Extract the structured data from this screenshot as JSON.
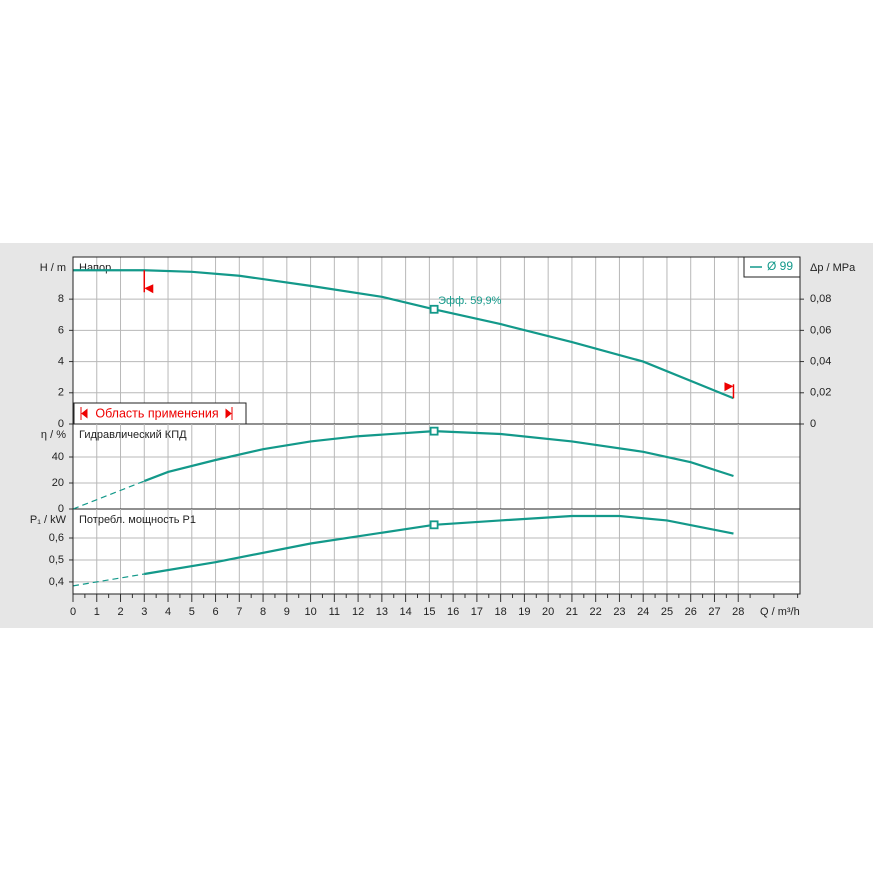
{
  "chart_data": [
    {
      "type": "line",
      "title": "Напор",
      "ylabel": "H / m",
      "y2label": "Δp / MPa",
      "x": [
        0,
        3,
        5,
        7,
        10,
        13,
        15.2,
        18,
        21,
        24,
        27.8
      ],
      "series": [
        {
          "name": "Ø 99",
          "color": "#13998a",
          "values": [
            9.85,
            9.85,
            9.75,
            9.5,
            8.85,
            8.15,
            7.35,
            6.4,
            5.25,
            4.0,
            1.65
          ]
        }
      ],
      "xlim": [
        0,
        30.6
      ],
      "ylim": [
        0,
        10.7
      ],
      "yticks": [
        0,
        2,
        4,
        6,
        8
      ],
      "y2lim": [
        0,
        0.107
      ],
      "y2ticks": [
        0,
        {
          "value": 0.02,
          "label": "0,02"
        },
        {
          "value": 0.04,
          "label": "0,04"
        },
        {
          "value": 0.06,
          "label": "0,06"
        },
        {
          "value": 0.08,
          "label": "0,08"
        }
      ],
      "operating_point": {
        "x": 15.2,
        "y": 7.35
      },
      "annotation": "Эфф.  59,9%",
      "application_range": {
        "label": "Область применения",
        "min": 3,
        "max": 27.8
      },
      "grid": true,
      "legend": "top-right"
    },
    {
      "type": "line",
      "title": "Гидравлический КПД",
      "ylabel": "η / %",
      "x": [
        0,
        3,
        4,
        6,
        8,
        10,
        12,
        15.2,
        18,
        21,
        24,
        26,
        27.8
      ],
      "series": [
        {
          "name": "Ø 99",
          "color": "#13998a",
          "values": [
            0,
            21.5,
            28.5,
            37.7,
            46,
            52,
            56,
            59.9,
            57.7,
            52,
            44,
            36,
            25.4
          ]
        }
      ],
      "extrapolated_start": true,
      "xlim": [
        0,
        30.6
      ],
      "ylim": [
        0,
        65.4
      ],
      "yticks": [
        0,
        20,
        40
      ],
      "operating_point": {
        "x": 15.2,
        "y": 59.9
      },
      "grid": true
    },
    {
      "type": "line",
      "title": "Потребл. мощность P1",
      "ylabel": "P₁ / kW",
      "xlabel": "Q / m³/h",
      "x": [
        0,
        3,
        6,
        10,
        15.2,
        18,
        21,
        23,
        25,
        27.8
      ],
      "series": [
        {
          "name": "Ø 99",
          "color": "#13998a",
          "values": [
            0.382,
            0.436,
            0.49,
            0.575,
            0.66,
            0.68,
            0.7,
            0.7,
            0.68,
            0.62
          ]
        }
      ],
      "extrapolated_start": true,
      "xlim": [
        0,
        30.6
      ],
      "ylim": [
        0.345,
        0.732
      ],
      "yticks": [
        {
          "value": 0.4,
          "label": "0,4"
        },
        {
          "value": 0.5,
          "label": "0,5"
        },
        {
          "value": 0.6,
          "label": "0,6"
        }
      ],
      "xticks": [
        0,
        1,
        2,
        3,
        4,
        5,
        6,
        7,
        8,
        9,
        10,
        11,
        12,
        13,
        14,
        15,
        16,
        17,
        18,
        19,
        20,
        21,
        22,
        23,
        24,
        25,
        26,
        27,
        28
      ],
      "operating_point": {
        "x": 15.2,
        "y": 0.66
      },
      "grid": true
    }
  ]
}
